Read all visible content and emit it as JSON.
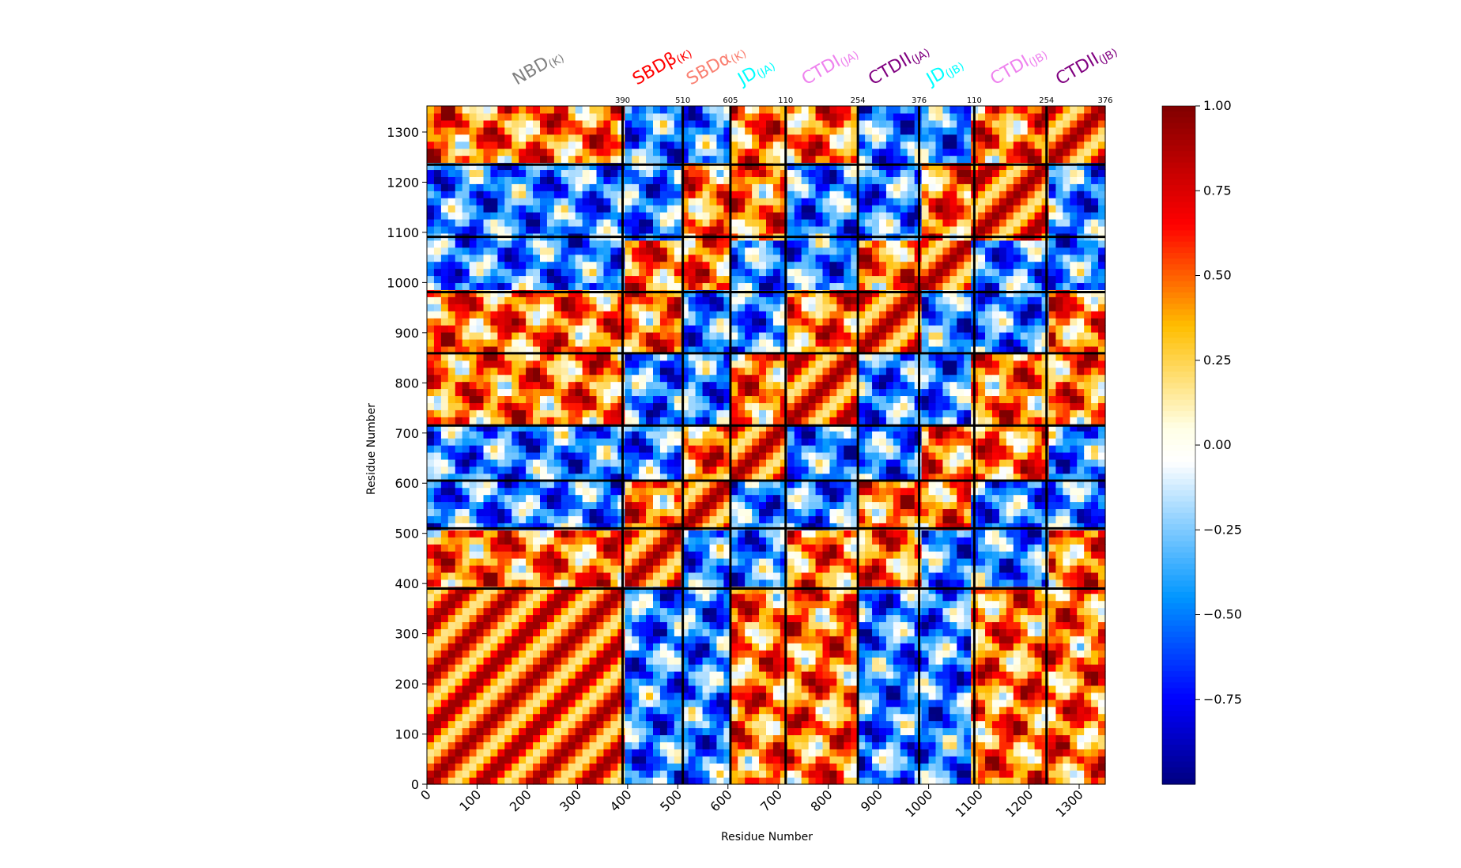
{
  "chart_data": {
    "type": "heatmap",
    "title": "",
    "xlabel": "Residue Number",
    "ylabel": "Residue Number",
    "xlim": [
      0,
      1352
    ],
    "ylim": [
      0,
      1352
    ],
    "x_ticks": [
      "0",
      "100",
      "200",
      "300",
      "400",
      "500",
      "600",
      "700",
      "800",
      "900",
      "1000",
      "1100",
      "1200",
      "1300"
    ],
    "y_ticks": [
      "0",
      "100",
      "200",
      "300",
      "400",
      "500",
      "600",
      "700",
      "800",
      "900",
      "1000",
      "1100",
      "1200",
      "1300"
    ],
    "colorbar": {
      "ticks": [
        "1.00",
        "0.75",
        "0.50",
        "0.25",
        "0.00",
        "−0.25",
        "−0.50",
        "−0.75"
      ],
      "min": -1.0,
      "max": 1.0,
      "colors": [
        "#000080",
        "#0000ff",
        "#00aaff",
        "#ffffff",
        "#ffffcc",
        "#ffaa00",
        "#ff0000",
        "#800000"
      ]
    },
    "domain_boundaries": [
      390,
      510,
      605,
      715,
      859,
      981,
      1091,
      1235
    ],
    "boundary_labels": [
      "390",
      "510",
      "605",
      "110",
      "254",
      "376",
      "110",
      "254",
      "376"
    ],
    "domains": [
      {
        "name": "NBD",
        "sub": "(K)",
        "color": "#808080",
        "start": 0,
        "end": 390
      },
      {
        "name": "SBDβ",
        "sub": "(K)",
        "color": "#ff0000",
        "start": 390,
        "end": 510
      },
      {
        "name": "SBDα",
        "sub": "(K)",
        "color": "#fa8072",
        "start": 510,
        "end": 605
      },
      {
        "name": "JD",
        "sub": "(JA)",
        "color": "#00ffff",
        "start": 605,
        "end": 715
      },
      {
        "name": "CTDI",
        "sub": "(JA)",
        "color": "#ee82ee",
        "start": 715,
        "end": 859
      },
      {
        "name": "CTDII",
        "sub": "(JA)",
        "color": "#800080",
        "start": 859,
        "end": 981
      },
      {
        "name": "JD",
        "sub": "(JB)",
        "color": "#00ffff",
        "start": 981,
        "end": 1091
      },
      {
        "name": "CTDI",
        "sub": "(JB)",
        "color": "#ee82ee",
        "start": 1091,
        "end": 1235
      },
      {
        "name": "CTDII",
        "sub": "(JB)",
        "color": "#800080",
        "start": 1235,
        "end": 1352
      }
    ]
  }
}
